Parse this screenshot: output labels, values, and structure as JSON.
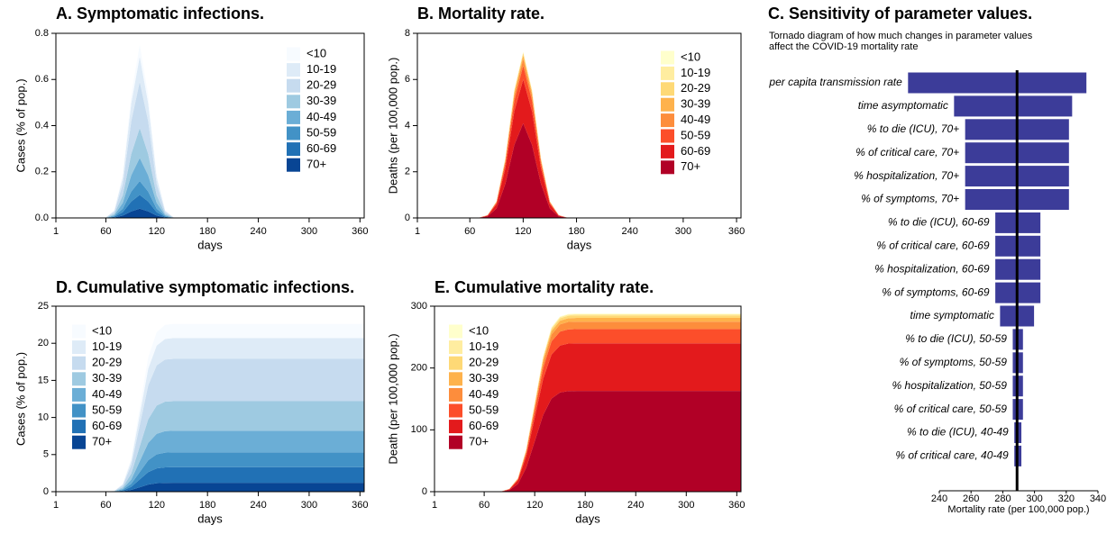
{
  "chart_data": [
    {
      "type": "area",
      "stacked": true,
      "title": "A. Symptomatic infections.",
      "xlabel": "days",
      "ylabel": "Cases (% of pop.)",
      "xlim": [
        1,
        365
      ],
      "xticks": [
        1,
        60,
        120,
        180,
        240,
        300,
        360
      ],
      "ylim": [
        0,
        0.8
      ],
      "yticks": [
        {
          "value": 0,
          "label": "0.0"
        },
        0.2,
        0.4,
        0.6,
        0.8
      ],
      "x": [
        1,
        60,
        70,
        80,
        90,
        100,
        110,
        120,
        130,
        140,
        150,
        160,
        170,
        365
      ],
      "series": [
        {
          "name": "<10",
          "color": "#f7fbff",
          "values": [
            0,
            0,
            0.002,
            0.013,
            0.036,
            0.05,
            0.036,
            0.013,
            0.002,
            0,
            0,
            0,
            0,
            0
          ]
        },
        {
          "name": "10-19",
          "color": "#deebf7",
          "values": [
            0,
            0,
            0.005,
            0.028,
            0.078,
            0.11,
            0.078,
            0.028,
            0.005,
            0,
            0,
            0,
            0,
            0
          ]
        },
        {
          "name": "20-29",
          "color": "#c6dbef",
          "values": [
            0,
            0.001,
            0.009,
            0.05,
            0.142,
            0.2,
            0.142,
            0.05,
            0.009,
            0.001,
            0,
            0,
            0,
            0
          ]
        },
        {
          "name": "30-39",
          "color": "#9ecae1",
          "values": [
            0,
            0.001,
            0.006,
            0.033,
            0.092,
            0.13,
            0.092,
            0.033,
            0.006,
            0.001,
            0,
            0,
            0,
            0
          ]
        },
        {
          "name": "40-49",
          "color": "#6baed6",
          "values": [
            0,
            0,
            0.004,
            0.025,
            0.071,
            0.1,
            0.071,
            0.025,
            0.004,
            0,
            0,
            0,
            0,
            0
          ]
        },
        {
          "name": "50-59",
          "color": "#4292c6",
          "values": [
            0,
            0,
            0.003,
            0.015,
            0.043,
            0.06,
            0.043,
            0.015,
            0.003,
            0,
            0,
            0,
            0,
            0
          ]
        },
        {
          "name": "60-69",
          "color": "#2171b5",
          "values": [
            0,
            0,
            0.003,
            0.015,
            0.043,
            0.06,
            0.043,
            0.015,
            0.003,
            0,
            0,
            0,
            0,
            0
          ]
        },
        {
          "name": "70+",
          "color": "#084594",
          "values": [
            0,
            0,
            0.002,
            0.01,
            0.028,
            0.04,
            0.028,
            0.01,
            0.002,
            0,
            0,
            0,
            0,
            0
          ]
        }
      ]
    },
    {
      "type": "area",
      "stacked": true,
      "title": "B. Mortality rate.",
      "xlabel": "days",
      "ylabel": "Deaths (per 100,000 pop.)",
      "xlim": [
        1,
        365
      ],
      "xticks": [
        1,
        60,
        120,
        180,
        240,
        300,
        360
      ],
      "ylim": [
        0,
        8
      ],
      "yticks": [
        0,
        2,
        4,
        6,
        8
      ],
      "x": [
        1,
        70,
        80,
        90,
        100,
        110,
        120,
        130,
        140,
        150,
        160,
        170,
        180,
        365
      ],
      "series": [
        {
          "name": "<10",
          "color": "#ffffcc",
          "values": [
            0,
            0,
            0,
            0,
            0.01,
            0.02,
            0.02,
            0.02,
            0.01,
            0,
            0,
            0,
            0,
            0
          ]
        },
        {
          "name": "10-19",
          "color": "#ffeda0",
          "values": [
            0,
            0,
            0,
            0,
            0.01,
            0.02,
            0.03,
            0.02,
            0.01,
            0,
            0,
            0,
            0,
            0
          ]
        },
        {
          "name": "20-29",
          "color": "#fed976",
          "values": [
            0,
            0,
            0,
            0.01,
            0.04,
            0.08,
            0.1,
            0.08,
            0.04,
            0.01,
            0,
            0,
            0,
            0
          ]
        },
        {
          "name": "30-39",
          "color": "#feb24c",
          "values": [
            0,
            0,
            0,
            0.02,
            0.05,
            0.12,
            0.15,
            0.12,
            0.05,
            0.02,
            0,
            0,
            0,
            0
          ]
        },
        {
          "name": "40-49",
          "color": "#fd8d3c",
          "values": [
            0,
            0,
            0.01,
            0.03,
            0.11,
            0.23,
            0.3,
            0.23,
            0.11,
            0.03,
            0.01,
            0,
            0,
            0
          ]
        },
        {
          "name": "50-59",
          "color": "#fc4e2a",
          "values": [
            0,
            0,
            0.01,
            0.06,
            0.22,
            0.46,
            0.6,
            0.46,
            0.22,
            0.06,
            0.01,
            0,
            0,
            0
          ]
        },
        {
          "name": "60-69",
          "color": "#e31a1c",
          "values": [
            0,
            0,
            0.03,
            0.19,
            0.68,
            1.46,
            1.9,
            1.46,
            0.68,
            0.19,
            0.03,
            0,
            0,
            0
          ]
        },
        {
          "name": "70+",
          "color": "#b10026",
          "values": [
            0,
            0.01,
            0.07,
            0.41,
            1.48,
            3.16,
            4.1,
            3.16,
            1.48,
            0.41,
            0.07,
            0.01,
            0,
            0
          ]
        }
      ]
    },
    {
      "type": "tornado",
      "title": "C. Sensitivity of parameter values.",
      "subtitle": [
        "Tornado diagram of how much changes in parameter values",
        "affect the COVID-19 mortality rate"
      ],
      "xlabel": "Mortality rate (per 100,000 pop.)",
      "xlim": [
        240,
        340
      ],
      "xticks": [
        240,
        260,
        280,
        300,
        320,
        340
      ],
      "baseline": 289,
      "color": "#3c3c99",
      "parameters": [
        {
          "label": "per capita transmission rate",
          "low": 220,
          "high": 333
        },
        {
          "label": "time asymptomatic",
          "low": 249,
          "high": 324
        },
        {
          "label": "% to die (ICU), 70+",
          "low": 256,
          "high": 322
        },
        {
          "label": "% of critical care, 70+",
          "low": 256,
          "high": 322
        },
        {
          "label": "% hospitalization, 70+",
          "low": 256,
          "high": 322
        },
        {
          "label": "% of symptoms, 70+",
          "low": 256,
          "high": 322
        },
        {
          "label": "% to die (ICU), 60-69",
          "low": 275,
          "high": 304
        },
        {
          "label": "% of critical care, 60-69",
          "low": 275,
          "high": 304
        },
        {
          "label": "% hospitalization, 60-69",
          "low": 275,
          "high": 304
        },
        {
          "label": "% of symptoms, 60-69",
          "low": 275,
          "high": 304
        },
        {
          "label": "time symptomatic",
          "low": 278,
          "high": 300
        },
        {
          "label": "% to die (ICU), 50-59",
          "low": 286,
          "high": 293
        },
        {
          "label": "% of symptoms, 50-59",
          "low": 286,
          "high": 293
        },
        {
          "label": "% hospitalization, 50-59",
          "low": 286,
          "high": 293
        },
        {
          "label": "% of critical care, 50-59",
          "low": 286,
          "high": 293
        },
        {
          "label": "% to die (ICU), 40-49",
          "low": 287,
          "high": 292
        },
        {
          "label": "% of critical care, 40-49",
          "low": 287,
          "high": 292
        }
      ]
    },
    {
      "type": "area",
      "stacked": true,
      "title": "D. Cumulative symptomatic infections.",
      "xlabel": "days",
      "ylabel": "Cases (% of pop.)",
      "xlim": [
        1,
        365
      ],
      "xticks": [
        1,
        60,
        120,
        180,
        240,
        300,
        360
      ],
      "ylim": [
        0,
        25
      ],
      "yticks": [
        0,
        5,
        10,
        15,
        20,
        25
      ],
      "x": [
        1,
        60,
        70,
        80,
        90,
        100,
        110,
        120,
        130,
        140,
        150,
        160,
        180,
        365
      ],
      "series": [
        {
          "name": "<10",
          "color": "#f7fbff",
          "values": [
            0,
            0,
            0.01,
            0.09,
            0.38,
            0.95,
            1.52,
            1.81,
            1.89,
            1.9,
            1.9,
            1.9,
            1.9,
            1.9
          ]
        },
        {
          "name": "10-19",
          "color": "#deebf7",
          "values": [
            0,
            0,
            0.02,
            0.13,
            0.56,
            1.4,
            2.24,
            2.66,
            2.78,
            2.8,
            2.8,
            2.8,
            2.8,
            2.8
          ]
        },
        {
          "name": "20-29",
          "color": "#c6dbef",
          "values": [
            0,
            0,
            0.03,
            0.27,
            1.14,
            2.85,
            4.56,
            5.42,
            5.67,
            5.7,
            5.7,
            5.7,
            5.7,
            5.7
          ]
        },
        {
          "name": "30-39",
          "color": "#9ecae1",
          "values": [
            0,
            0,
            0.02,
            0.19,
            0.8,
            2,
            3.2,
            3.8,
            3.98,
            4,
            4,
            4,
            4,
            4
          ]
        },
        {
          "name": "40-49",
          "color": "#6baed6",
          "values": [
            0,
            0,
            0.02,
            0.14,
            0.58,
            1.45,
            2.32,
            2.76,
            2.88,
            2.9,
            2.9,
            2.9,
            2.9,
            2.9
          ]
        },
        {
          "name": "50-59",
          "color": "#4292c6",
          "values": [
            0,
            0,
            0.01,
            0.1,
            0.4,
            1,
            1.6,
            1.9,
            1.99,
            2,
            2,
            2,
            2,
            2
          ]
        },
        {
          "name": "60-69",
          "color": "#2171b5",
          "values": [
            0,
            0,
            0.01,
            0.1,
            0.42,
            1.05,
            1.68,
            2,
            2.09,
            2.1,
            2.1,
            2.1,
            2.1,
            2.1
          ]
        },
        {
          "name": "70+",
          "color": "#084594",
          "values": [
            0,
            0,
            0.01,
            0.06,
            0.24,
            0.6,
            0.96,
            1.14,
            1.19,
            1.2,
            1.2,
            1.2,
            1.2,
            1.2
          ]
        }
      ]
    },
    {
      "type": "area",
      "stacked": true,
      "title": "E. Cumulative mortality rate.",
      "xlabel": "days",
      "ylabel": "Death (per 100,000 pop.)",
      "xlim": [
        1,
        365
      ],
      "xticks": [
        1,
        60,
        120,
        180,
        240,
        300,
        360
      ],
      "ylim": [
        0,
        300
      ],
      "yticks": [
        0,
        100,
        200,
        300
      ],
      "x": [
        1,
        70,
        80,
        90,
        100,
        110,
        120,
        130,
        140,
        150,
        160,
        170,
        180,
        365
      ],
      "series": [
        {
          "name": "<10",
          "color": "#ffffcc",
          "values": [
            0,
            0,
            0,
            0,
            0.1,
            0.2,
            0.5,
            0.8,
            0.9,
            1,
            1,
            1,
            1,
            1
          ]
        },
        {
          "name": "10-19",
          "color": "#ffeda0",
          "values": [
            0,
            0,
            0,
            0,
            0.2,
            0.5,
            1,
            1.5,
            1.8,
            2,
            2,
            2,
            2,
            2
          ]
        },
        {
          "name": "20-29",
          "color": "#fed976",
          "values": [
            0,
            0,
            0,
            0.1,
            0.3,
            1,
            2,
            3,
            3.7,
            3.9,
            4,
            4,
            4,
            4
          ]
        },
        {
          "name": "30-39",
          "color": "#feb24c",
          "values": [
            0,
            0,
            0,
            0.1,
            0.5,
            1.4,
            3,
            4.6,
            5.5,
            5.9,
            6,
            6,
            6,
            6
          ]
        },
        {
          "name": "40-49",
          "color": "#fd8d3c",
          "values": [
            0,
            0,
            0,
            0.2,
            0.9,
            2.9,
            6,
            9.1,
            11.1,
            11.8,
            12,
            12,
            12,
            12
          ]
        },
        {
          "name": "50-59",
          "color": "#fc4e2a",
          "values": [
            0,
            0,
            0,
            0.4,
            1.7,
            5.5,
            11.5,
            17.5,
            21.3,
            22.6,
            23,
            23,
            23,
            23
          ]
        },
        {
          "name": "60-69",
          "color": "#e31a1c",
          "values": [
            0,
            0,
            0.2,
            1.2,
            5.9,
            18.5,
            38.5,
            58.5,
            71.1,
            75.8,
            76.8,
            77,
            77,
            77
          ]
        },
        {
          "name": "70+",
          "color": "#b10026",
          "values": [
            0,
            0,
            0.3,
            2.6,
            12.4,
            39.1,
            81.5,
            123.9,
            150.6,
            160.4,
            162.7,
            163,
            163,
            163
          ]
        }
      ]
    }
  ]
}
